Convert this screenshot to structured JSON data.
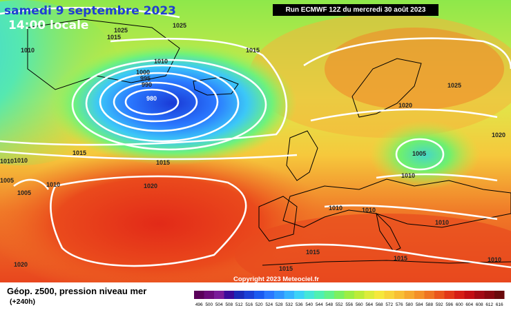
{
  "map": {
    "date_text": "samedi 9 septembre 2023",
    "time_text": "14:00 locale",
    "run_text": "Run ECMWF 12Z du mercredi 30 août 2023",
    "copyright": "Copyright 2023 Meteociel.fr",
    "isobar_labels": [
      "1025",
      "1025",
      "1015",
      "1010",
      "1010",
      "1015",
      "1000",
      "995",
      "990",
      "980",
      "1025",
      "1020",
      "1020",
      "1015",
      "1015",
      "1010",
      "1005",
      "1005",
      "1010",
      "1020",
      "1010",
      "1005",
      "1010",
      "1010",
      "1010",
      "1010",
      "1015",
      "1015",
      "1015",
      "1020",
      "1010"
    ]
  },
  "legend": {
    "title": "Géop. z500, pression niveau mer",
    "subtitle": "(+240h)",
    "scale_values": [
      "496",
      "500",
      "504",
      "508",
      "512",
      "516",
      "520",
      "524",
      "528",
      "532",
      "536",
      "540",
      "544",
      "548",
      "552",
      "556",
      "560",
      "564",
      "568",
      "572",
      "576",
      "580",
      "584",
      "588",
      "592",
      "596",
      "600",
      "604",
      "608",
      "612",
      "616"
    ],
    "scale_colors": [
      "#5a005a",
      "#6b0a7a",
      "#7a1a99",
      "#3a0a9a",
      "#1a2ab8",
      "#1a40d6",
      "#1a5af0",
      "#2a78ff",
      "#2f95ff",
      "#35b4ff",
      "#3cd2f7",
      "#45e6d8",
      "#4ff0b2",
      "#62f28a",
      "#7cf060",
      "#9cee44",
      "#bcec38",
      "#dcec3a",
      "#f5e83c",
      "#f8d43a",
      "#f8bf34",
      "#f6a82e",
      "#f49028",
      "#ef7422",
      "#ea561c",
      "#e23818",
      "#d61e16",
      "#c20e14",
      "#a20a14",
      "#880810",
      "#6a0a0c"
    ]
  }
}
